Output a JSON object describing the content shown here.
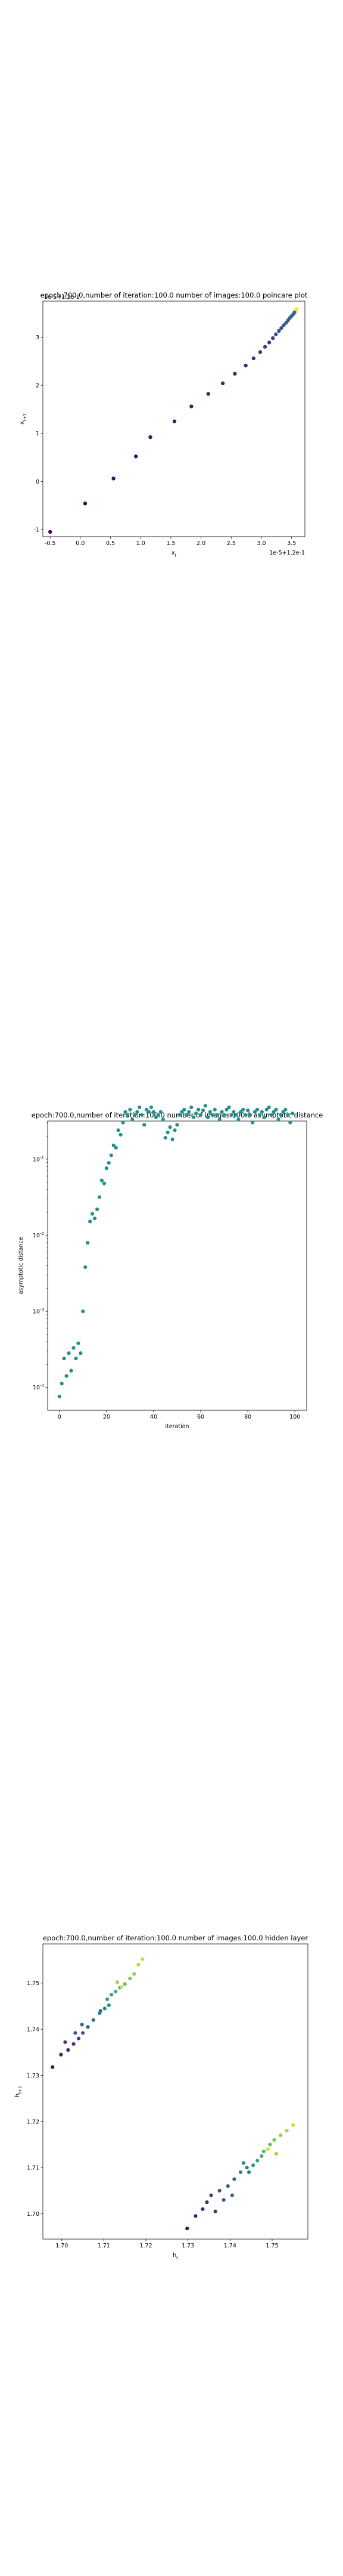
{
  "chart_data": [
    {
      "type": "scatter",
      "title": "epoch:700.0,number of iteration:100.0 number of images:100.0 poincare plot",
      "xlabel": "x_t",
      "ylabel": "x_{t+1}",
      "xticks": [
        "-0.5",
        "0.0",
        "0.5",
        "1.0",
        "1.5",
        "2.0",
        "2.5",
        "3.0",
        "3.5"
      ],
      "yticks": [
        "-1",
        "0",
        "1",
        "2",
        "3"
      ],
      "offset_text": "1e-5+1.2e-1",
      "xlim": [
        -0.62,
        3.72
      ],
      "ylim": [
        -1.15,
        3.75
      ],
      "colormap": "viridis",
      "grid": false,
      "x": [
        -0.5,
        0.08,
        0.55,
        0.92,
        1.16,
        1.56,
        1.84,
        2.12,
        2.36,
        2.56,
        2.74,
        2.87,
        2.98,
        3.06,
        3.13,
        3.19,
        3.24,
        3.29,
        3.33,
        3.37,
        3.41,
        3.44,
        3.47,
        3.5,
        3.53,
        3.55
      ],
      "y": [
        -1.05,
        -0.46,
        0.06,
        0.52,
        0.92,
        1.25,
        1.56,
        1.82,
        2.04,
        2.24,
        2.41,
        2.56,
        2.69,
        2.8,
        2.89,
        2.98,
        3.06,
        3.13,
        3.19,
        3.25,
        3.3,
        3.35,
        3.4,
        3.44,
        3.48,
        3.52
      ],
      "highlight": {
        "x": 3.58,
        "y": 3.58,
        "color": "#fde725"
      }
    },
    {
      "type": "scatter",
      "title": "epoch:700.0,number of iteration:100.0  number of images:100.0 asymptotic distance",
      "xlabel": "iteration",
      "ylabel": "asymptotic distance",
      "yscale": "log",
      "xticks": [
        "0",
        "20",
        "40",
        "60",
        "80",
        "100"
      ],
      "yticks": [
        "10^{-4}",
        "10^{-3}",
        "10^{-2}",
        "10^{-1}"
      ],
      "xlim": [
        -5,
        105
      ],
      "ylim_exp": [
        -4.3,
        -0.5
      ],
      "color": "#21918c",
      "grid": false,
      "x_start": 0,
      "y_log10": [
        -4.12,
        -3.95,
        -3.62,
        -3.85,
        -3.55,
        -3.78,
        -3.48,
        -3.62,
        -3.42,
        -3.55,
        -3.0,
        -2.42,
        -2.1,
        -1.82,
        -1.72,
        -1.78,
        -1.66,
        -1.5,
        -1.28,
        -1.32,
        -1.12,
        -1.05,
        -0.95,
        -0.82,
        -0.85,
        -0.62,
        -0.68,
        -0.52,
        -0.38,
        -0.42,
        -0.35,
        -0.48,
        -0.42,
        -0.38,
        -0.32,
        -0.42,
        -0.55,
        -0.35,
        -0.38,
        -0.32,
        -0.38,
        -0.45,
        -0.42,
        -0.38,
        -0.48,
        -0.72,
        -0.65,
        -0.58,
        -0.74,
        -0.62,
        -0.55,
        -0.42,
        -0.38,
        -0.35,
        -0.42,
        -0.38,
        -0.32,
        -0.45,
        -0.4,
        -0.35,
        -0.42,
        -0.36,
        -0.3,
        -0.45,
        -0.38,
        -0.42,
        -0.35,
        -0.42,
        -0.48,
        -0.38,
        -0.42,
        -0.35,
        -0.32,
        -0.42,
        -0.38,
        -0.42,
        -0.48,
        -0.38,
        -0.35,
        -0.42,
        -0.36,
        -0.42,
        -0.52,
        -0.38,
        -0.35,
        -0.42,
        -0.38,
        -0.45,
        -0.35,
        -0.32,
        -0.42,
        -0.38,
        -0.35,
        -0.48,
        -0.42,
        -0.38,
        -0.35,
        -0.42,
        -0.52,
        -0.4
      ]
    },
    {
      "type": "scatter",
      "title": "epoch:700.0,number of iteration:100.0  number of images:100.0 hidden layer",
      "xlabel": "h_t",
      "ylabel": "h_{t+1}",
      "xticks": [
        "1.70",
        "1.71",
        "1.72",
        "1.73",
        "1.74",
        "1.75"
      ],
      "yticks": [
        "1.70",
        "1.71",
        "1.72",
        "1.73",
        "1.74",
        "1.75"
      ],
      "xlim": [
        1.6955,
        1.7585
      ],
      "ylim": [
        1.6945,
        1.7585
      ],
      "colormap": "viridis",
      "grid": false,
      "points": [
        [
          1.7298,
          1.6968,
          0.05
        ],
        [
          1.7318,
          1.6995,
          0.1
        ],
        [
          1.7335,
          1.701,
          0.12
        ],
        [
          1.7345,
          1.7025,
          0.15
        ],
        [
          1.7365,
          1.7005,
          0.18
        ],
        [
          1.7355,
          1.704,
          0.2
        ],
        [
          1.7375,
          1.705,
          0.25
        ],
        [
          1.7395,
          1.706,
          0.3
        ],
        [
          1.741,
          1.7075,
          0.35
        ],
        [
          1.7425,
          1.709,
          0.42
        ],
        [
          1.744,
          1.71,
          0.45
        ],
        [
          1.7432,
          1.711,
          0.5
        ],
        [
          1.7455,
          1.7105,
          0.55
        ],
        [
          1.7465,
          1.7115,
          0.58
        ],
        [
          1.7475,
          1.7125,
          0.62
        ],
        [
          1.748,
          1.7135,
          0.68
        ],
        [
          1.7495,
          1.715,
          0.72
        ],
        [
          1.7505,
          1.716,
          0.78
        ],
        [
          1.752,
          1.717,
          0.82
        ],
        [
          1.7535,
          1.718,
          0.88
        ],
        [
          1.755,
          1.7192,
          0.92
        ],
        [
          1.749,
          1.714,
          0.95
        ],
        [
          1.751,
          1.713,
          0.85
        ],
        [
          1.7445,
          1.709,
          0.4
        ],
        [
          1.7385,
          1.703,
          0.28
        ],
        [
          1.7405,
          1.704,
          0.32
        ],
        [
          1.6978,
          1.7318,
          0.05
        ],
        [
          1.6998,
          1.7345,
          0.1
        ],
        [
          1.7015,
          1.7355,
          0.12
        ],
        [
          1.7028,
          1.7368,
          0.15
        ],
        [
          1.7008,
          1.7372,
          0.18
        ],
        [
          1.704,
          1.738,
          0.2
        ],
        [
          1.705,
          1.7392,
          0.25
        ],
        [
          1.7062,
          1.7405,
          0.3
        ],
        [
          1.7075,
          1.742,
          0.35
        ],
        [
          1.709,
          1.7435,
          0.42
        ],
        [
          1.7102,
          1.7445,
          0.45
        ],
        [
          1.7112,
          1.7452,
          0.5
        ],
        [
          1.7108,
          1.7465,
          0.55
        ],
        [
          1.7118,
          1.7475,
          0.58
        ],
        [
          1.7128,
          1.7482,
          0.62
        ],
        [
          1.7138,
          1.749,
          0.68
        ],
        [
          1.715,
          1.7498,
          0.72
        ],
        [
          1.7162,
          1.751,
          0.78
        ],
        [
          1.7172,
          1.752,
          0.82
        ],
        [
          1.7182,
          1.754,
          0.88
        ],
        [
          1.7192,
          1.7552,
          0.92
        ],
        [
          1.7142,
          1.7492,
          0.95
        ],
        [
          1.7132,
          1.7502,
          0.85
        ],
        [
          1.7092,
          1.744,
          0.4
        ],
        [
          1.7032,
          1.7392,
          0.28
        ],
        [
          1.7048,
          1.741,
          0.32
        ]
      ]
    }
  ]
}
